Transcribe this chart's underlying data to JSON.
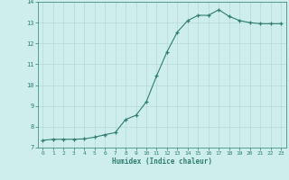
{
  "x": [
    0,
    1,
    2,
    3,
    4,
    5,
    6,
    7,
    8,
    9,
    10,
    11,
    12,
    13,
    14,
    15,
    16,
    17,
    18,
    19,
    20,
    21,
    22,
    23
  ],
  "y": [
    7.35,
    7.4,
    7.4,
    7.4,
    7.42,
    7.5,
    7.62,
    7.72,
    8.35,
    8.55,
    9.2,
    10.45,
    11.6,
    12.55,
    13.1,
    13.35,
    13.35,
    13.62,
    13.3,
    13.1,
    13.0,
    12.95,
    12.95,
    12.95
  ],
  "line_color": "#2e7d6e",
  "marker": "+",
  "marker_color": "#2e7d6e",
  "bg_color": "#ceeeed",
  "grid_color_major": "#b8d8d6",
  "grid_color_minor": "#d8eeec",
  "xlabel": "Humidex (Indice chaleur)",
  "xlim": [
    -0.5,
    23.5
  ],
  "ylim": [
    7,
    14
  ],
  "yticks": [
    7,
    8,
    9,
    10,
    11,
    12,
    13,
    14
  ],
  "xticks": [
    0,
    1,
    2,
    3,
    4,
    5,
    6,
    7,
    8,
    9,
    10,
    11,
    12,
    13,
    14,
    15,
    16,
    17,
    18,
    19,
    20,
    21,
    22,
    23
  ],
  "label_color": "#2e7d6e",
  "tick_color": "#2e7d6e",
  "spine_color": "#2e7d6e"
}
